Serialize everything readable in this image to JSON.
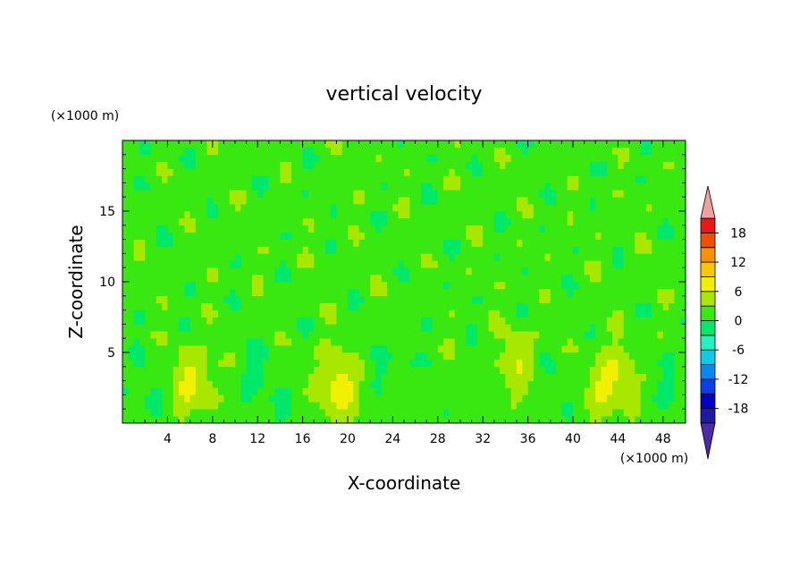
{
  "chart_data": {
    "type": "heatmap",
    "title": "vertical velocity",
    "xlabel": "X-coordinate",
    "ylabel": "Z-coordinate",
    "x_unit": "(×1000 m)",
    "y_unit": "(×1000 m)",
    "xlim": [
      0,
      50
    ],
    "ylim": [
      0,
      20
    ],
    "x_ticks": [
      4,
      8,
      12,
      16,
      20,
      24,
      28,
      32,
      36,
      40,
      44,
      48
    ],
    "y_ticks": [
      5,
      10,
      15
    ],
    "colorbar": {
      "levels": [
        -21,
        -18,
        -15,
        -12,
        -9,
        -6,
        -3,
        0,
        3,
        6,
        9,
        12,
        15,
        18,
        21
      ],
      "tick_labels": [
        -18,
        -12,
        -6,
        0,
        6,
        12,
        18
      ],
      "colors": [
        "#4b2aa8",
        "#1d1a9e",
        "#0000c8",
        "#0b3ee8",
        "#0a86f0",
        "#10c8e8",
        "#25f0c0",
        "#00e86a",
        "#39e810",
        "#a8e800",
        "#f0f000",
        "#f8c800",
        "#f89000",
        "#f05000",
        "#e81818",
        "#f0a0a0"
      ],
      "extend": "both"
    },
    "background_level": 1.5,
    "features": [
      {
        "kind": "updraft",
        "x": 6.3,
        "z": 3.0,
        "peak": 6.5
      },
      {
        "kind": "updraft",
        "x": 19.0,
        "z": 2.5,
        "peak": 7.5
      },
      {
        "kind": "updraft",
        "x": 35.0,
        "z": 4.3,
        "peak": 5.0
      },
      {
        "kind": "updraft",
        "x": 43.2,
        "z": 2.8,
        "peak": 7.0
      },
      {
        "kind": "downdraft",
        "x": 2.0,
        "z": 2.5,
        "peak": -1.8
      },
      {
        "kind": "downdraft",
        "x": 11.5,
        "z": 3.0,
        "peak": -1.5
      },
      {
        "kind": "downdraft",
        "x": 14.5,
        "z": 1.8,
        "peak": -1.2
      },
      {
        "kind": "downdraft",
        "x": 24.0,
        "z": 3.5,
        "peak": -1.6
      },
      {
        "kind": "downdraft",
        "x": 39.0,
        "z": 2.8,
        "peak": -1.8
      },
      {
        "kind": "downdraft",
        "x": 49.0,
        "z": 2.2,
        "peak": -1.5
      }
    ]
  }
}
